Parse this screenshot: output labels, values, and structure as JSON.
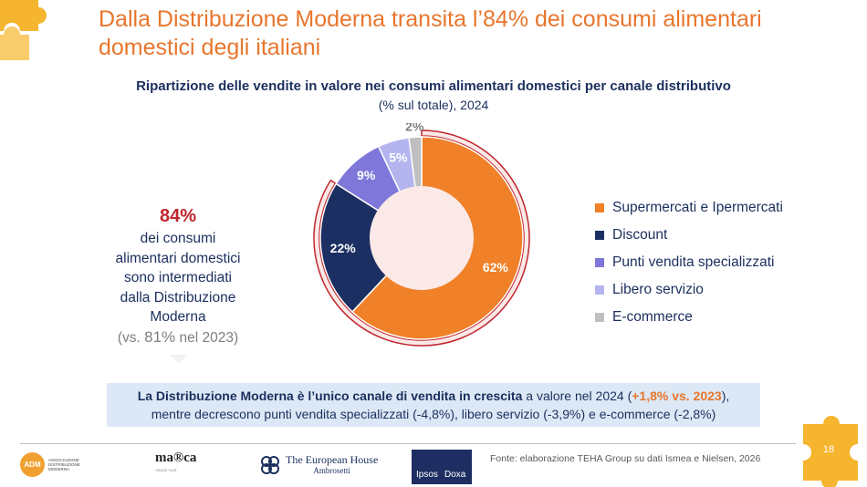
{
  "title": "Dalla Distribuzione Moderna transita l’84% dei consumi alimentari domestici degli italiani",
  "chart_data": {
    "type": "pie",
    "title": "Ripartizione delle vendite in valore nei consumi alimentari domestici per canale distributivo",
    "subtitle": "(% sul totale), 2024",
    "series": [
      {
        "name": "Supermercati e Ipermercati",
        "value": 62,
        "label": "62%",
        "color": "#F08128"
      },
      {
        "name": "Discount",
        "value": 22,
        "label": "22%",
        "color": "#1B2F62"
      },
      {
        "name": "Punti vendita specializzati",
        "value": 9,
        "label": "9%",
        "color": "#7F77D9"
      },
      {
        "name": "Libero servizio",
        "value": 5,
        "label": "5%",
        "color": "#B4B5EF"
      },
      {
        "name": "E-commerce",
        "value": 2,
        "label": "2%",
        "color": "#BFBFBF"
      }
    ],
    "highlight_share_pct": 84
  },
  "stat": {
    "value": "84%",
    "line1": "dei consumi",
    "line2": "alimentari domestici",
    "line3": "sono intermediati",
    "line4": "dalla Distribuzione",
    "line5": "Moderna",
    "prev_open": "(vs.",
    "prev_value": "81%",
    "prev_close": "nel 2023)"
  },
  "banner": {
    "bold": "La Distribuzione Moderna è l’unico canale di vendita in crescita",
    "text1": "a valore nel 2024 (",
    "highlight": "+1,8% vs. 2023",
    "text2": "),",
    "line2": "mentre decrescono punti vendita specializzati (-4,8%), libero servizio (-3,9%) e e-commerce (-2,8%)"
  },
  "footer": {
    "source": "Fonte: elaborazione TEHA Group su dati Ismea e Nielsen, 2026",
    "page": "18",
    "logos": {
      "adm": "ADM",
      "adm_sub": "ASSOCIAZIONE DISTRIBUZIONE MODERNA",
      "marca": "ma®ca",
      "marca_sub": "TRADE FAIR",
      "teh_line1": "The European House",
      "teh_line2": "Ambrosetti",
      "ipsos": "Ipsos",
      "doxa": "Doxa"
    }
  },
  "colors": {
    "accent": "#E8762D",
    "navy": "#1B2F5E",
    "red": "#C0262D",
    "puzzle": "#F6B52E",
    "inner_circle": "#FBE9E8",
    "ring": "#C0262D"
  }
}
